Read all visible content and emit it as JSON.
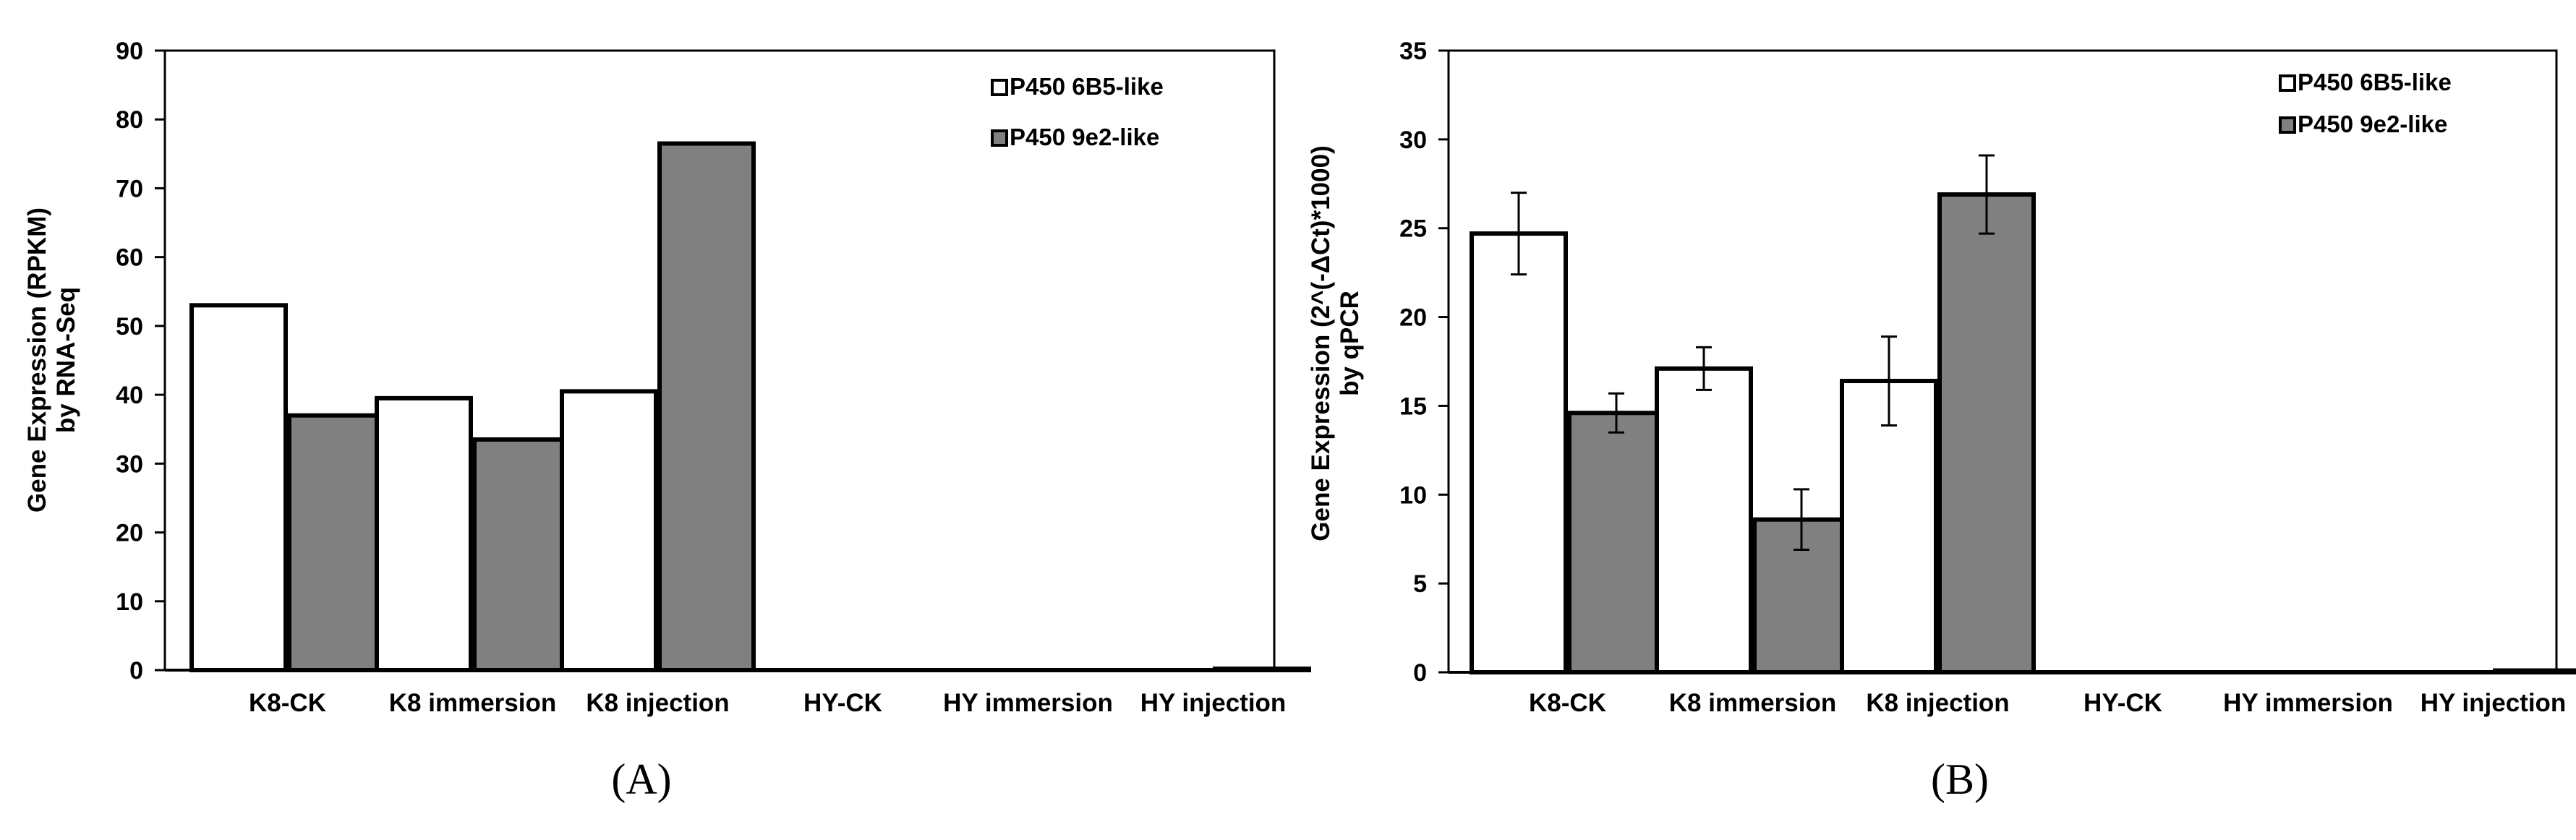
{
  "chart_data": [
    {
      "type": "bar",
      "panel": "(A)",
      "ylabel_lines": [
        "Gene Expression (RPKM)",
        "by  RNA-Seq"
      ],
      "ylim": [
        0,
        90
      ],
      "yticks": [
        0,
        10,
        20,
        30,
        40,
        50,
        60,
        70,
        80,
        90
      ],
      "categories": [
        "K8-CK",
        "K8 immersion",
        "K8 injection",
        "HY-CK",
        "HY immersion",
        "HY injection"
      ],
      "series": [
        {
          "name": "P450 6B5-like",
          "color": "#ffffff",
          "values": [
            53,
            39.5,
            40.5,
            0,
            0,
            0
          ]
        },
        {
          "name": "P450 9e2-like",
          "color": "#808080",
          "values": [
            37,
            33.5,
            76.5,
            0,
            0,
            0.2
          ]
        }
      ],
      "error_bars": false,
      "legend": "top-right"
    },
    {
      "type": "bar",
      "panel": "(B)",
      "ylabel_lines": [
        "Gene Expression (2^(-ΔCt)*1000)",
        "by qPCR"
      ],
      "ylim": [
        0,
        35
      ],
      "yticks": [
        0,
        5,
        10,
        15,
        20,
        25,
        30,
        35
      ],
      "categories": [
        "K8-CK",
        "K8 immersion",
        "K8 injection",
        "HY-CK",
        "HY immersion",
        "HY injection"
      ],
      "series": [
        {
          "name": "P450 6B5-like",
          "color": "#ffffff",
          "values": [
            24.7,
            17.1,
            16.4,
            0,
            0,
            0
          ],
          "errors": [
            2.3,
            1.2,
            2.5,
            0,
            0,
            0
          ]
        },
        {
          "name": "P450 9e2-like",
          "color": "#808080",
          "values": [
            14.6,
            8.6,
            26.9,
            0,
            0,
            0.1
          ],
          "errors": [
            1.1,
            1.7,
            2.2,
            0,
            0,
            0
          ]
        }
      ],
      "error_bars": true,
      "legend": "top-right"
    }
  ]
}
